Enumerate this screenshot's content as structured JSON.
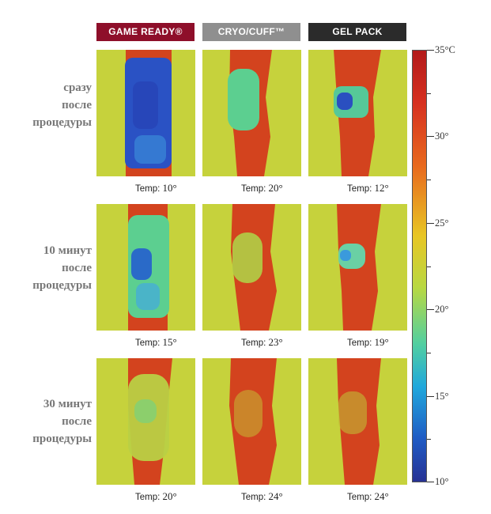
{
  "columns": [
    {
      "label": "GAME READY®",
      "bg": "#8e0f2a"
    },
    {
      "label": "CRYO/CUFF™",
      "bg": "#8f8f8f"
    },
    {
      "label": "GEL PACK",
      "bg": "#2b2b2b"
    }
  ],
  "rows": [
    {
      "label_lines": [
        "сразу",
        "после",
        "процедуры"
      ],
      "temps": [
        {
          "prefix": "Temp:",
          "value": "10°"
        },
        {
          "prefix": "Temp:",
          "value": "20°"
        },
        {
          "prefix": "Temp:",
          "value": "12°"
        }
      ]
    },
    {
      "label_lines": [
        "10 минут",
        "после",
        "процедуры"
      ],
      "temps": [
        {
          "prefix": "Temp:",
          "value": "15°"
        },
        {
          "prefix": "Temp:",
          "value": "23°"
        },
        {
          "prefix": "Temp:",
          "value": "19°"
        }
      ]
    },
    {
      "label_lines": [
        "30 минут",
        "после",
        "процедуры"
      ],
      "temps": [
        {
          "prefix": "Temp:",
          "value": "20°"
        },
        {
          "prefix": "Temp:",
          "value": "24°"
        },
        {
          "prefix": "Temp:",
          "value": "24°"
        }
      ]
    }
  ],
  "scale": {
    "labels": [
      "35°C",
      "30°",
      "25°",
      "20°",
      "15°",
      "10°"
    ]
  },
  "colors": {
    "background": "#c8d23c",
    "leg_hot": "#d2401e",
    "cold_deep": "#2a4fc0",
    "cold_mid": "#3a9adc",
    "cool": "#5ccf90"
  }
}
